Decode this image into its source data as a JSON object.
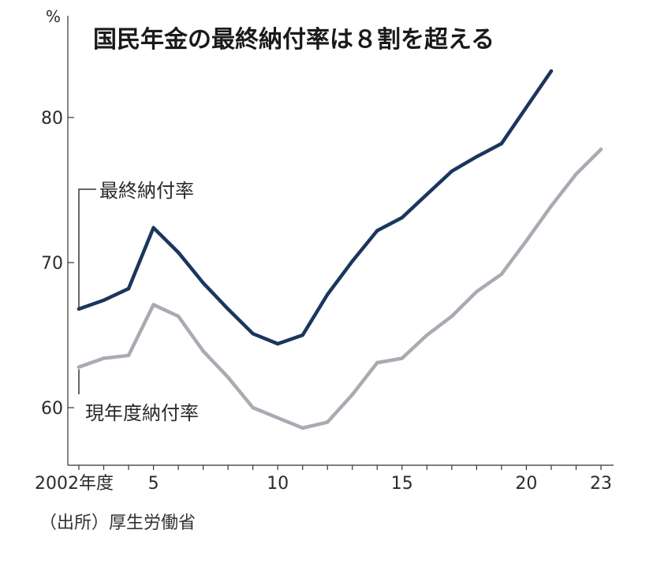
{
  "chart_data": {
    "type": "line",
    "title": "国民年金の最終納付率は８割を超える",
    "y_unit": "%",
    "x": [
      2002,
      2003,
      2004,
      2005,
      2006,
      2007,
      2008,
      2009,
      2010,
      2011,
      2012,
      2013,
      2014,
      2015,
      2016,
      2017,
      2018,
      2019,
      2020,
      2021,
      2022,
      2023
    ],
    "x_tick_values": [
      2002,
      2005,
      2010,
      2015,
      2020,
      2023
    ],
    "x_tick_labels": [
      "2002年度",
      "5",
      "10",
      "15",
      "20",
      "23"
    ],
    "y_ticks": [
      60,
      70,
      80
    ],
    "ylim": [
      56,
      86
    ],
    "xlim": [
      2002,
      2023
    ],
    "series": [
      {
        "name": "最終納付率",
        "color": "#1b365d",
        "x": [
          2002,
          2003,
          2004,
          2005,
          2006,
          2007,
          2008,
          2009,
          2010,
          2011,
          2012,
          2013,
          2014,
          2015,
          2016,
          2017,
          2018,
          2019,
          2020,
          2021
        ],
        "values": [
          66.8,
          67.4,
          68.2,
          72.4,
          70.7,
          68.6,
          66.8,
          65.1,
          64.4,
          65.0,
          67.8,
          70.1,
          72.2,
          73.1,
          74.7,
          76.3,
          77.3,
          78.2,
          80.7,
          83.2
        ]
      },
      {
        "name": "現年度納付率",
        "color": "#a9abb2",
        "x": [
          2002,
          2003,
          2004,
          2005,
          2006,
          2007,
          2008,
          2009,
          2010,
          2011,
          2012,
          2013,
          2014,
          2015,
          2016,
          2017,
          2018,
          2019,
          2020,
          2021,
          2022,
          2023
        ],
        "values": [
          62.8,
          63.4,
          63.6,
          67.1,
          66.3,
          63.9,
          62.1,
          60.0,
          59.3,
          58.6,
          59.0,
          60.9,
          63.1,
          63.4,
          65.0,
          66.3,
          68.0,
          69.2,
          71.5,
          73.9,
          76.1,
          77.8
        ]
      }
    ],
    "grid": false,
    "source": "（出所）厚生労働省"
  }
}
